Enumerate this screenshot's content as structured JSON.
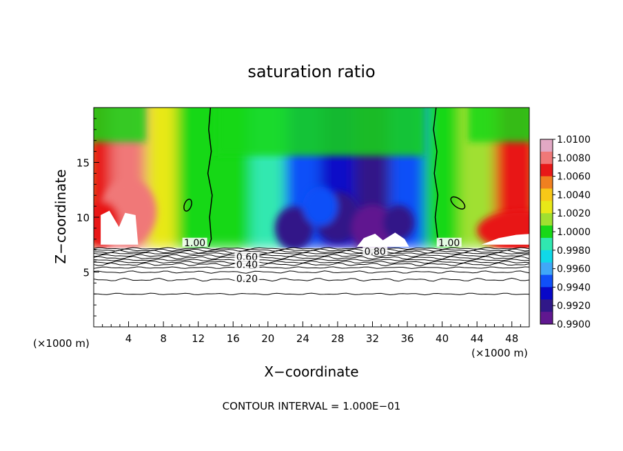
{
  "chart_data": {
    "type": "heatmap",
    "title": "saturation ratio",
    "xlabel": "X−coordinate",
    "ylabel": "Z−coordinate",
    "x_unit_left": "(×1000 m)",
    "x_unit_right": "(×1000 m)",
    "xlim": [
      0,
      50
    ],
    "ylim": [
      0,
      20
    ],
    "x_ticks": [
      4,
      8,
      12,
      16,
      20,
      24,
      28,
      32,
      36,
      40,
      44,
      48
    ],
    "y_ticks": [
      5,
      10,
      15
    ],
    "footer": "CONTOUR INTERVAL = 1.000E−01",
    "colorbar": {
      "ticks": [
        "1.0100",
        "1.0080",
        "1.0060",
        "1.0040",
        "1.0020",
        "1.0000",
        "0.9980",
        "0.9960",
        "0.9940",
        "0.9920",
        "0.9900"
      ],
      "min": 0.99,
      "max": 1.01,
      "colors": [
        "#e2a8c4",
        "#f07878",
        "#e81818",
        "#f08020",
        "#f8c818",
        "#e8e818",
        "#a0e030",
        "#18d818",
        "#30e8b0",
        "#10d8e8",
        "#40a8f8",
        "#1050f8",
        "#0808c8",
        "#301888",
        "#601890"
      ]
    },
    "contour_labels": [
      {
        "text": "1.00",
        "x": 11.6,
        "z": 7.5
      },
      {
        "text": "1.00",
        "x": 40.8,
        "z": 7.5
      },
      {
        "text": "0.80",
        "x": 32.3,
        "z": 6.7
      },
      {
        "text": "0.60",
        "x": 17.6,
        "z": 6.2
      },
      {
        "text": "0.40",
        "x": 17.6,
        "z": 5.5
      },
      {
        "text": "0.20",
        "x": 17.6,
        "z": 4.2
      }
    ],
    "contour_levels": [
      0.2,
      0.4,
      0.6,
      0.8,
      1.0
    ],
    "cloud_layer_base_z": 7.2,
    "field_profile": [
      {
        "x": 0,
        "value": 1.0065
      },
      {
        "x": 4,
        "value": 1.0085
      },
      {
        "x": 8,
        "value": 1.003
      },
      {
        "x": 11,
        "value": 1.0003
      },
      {
        "x": 16,
        "value": 0.9995
      },
      {
        "x": 20,
        "value": 0.9985
      },
      {
        "x": 24,
        "value": 0.995
      },
      {
        "x": 28,
        "value": 0.9935
      },
      {
        "x": 32,
        "value": 0.9915
      },
      {
        "x": 36,
        "value": 0.995
      },
      {
        "x": 40,
        "value": 1.0
      },
      {
        "x": 44,
        "value": 1.001
      },
      {
        "x": 48,
        "value": 1.007
      }
    ]
  }
}
